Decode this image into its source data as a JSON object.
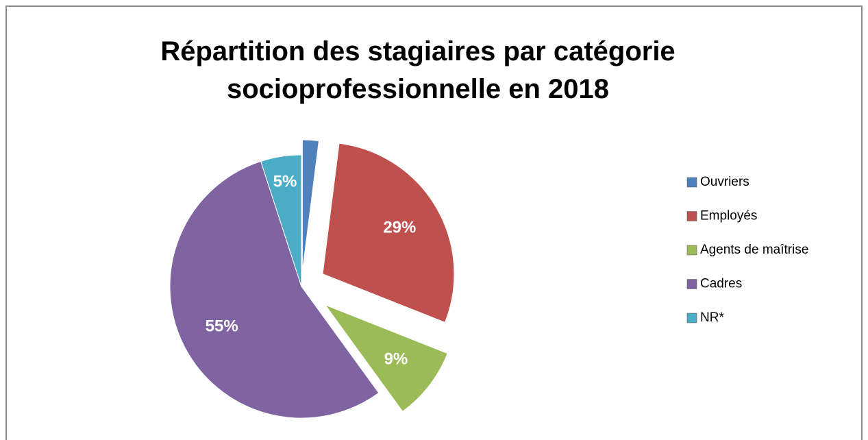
{
  "chart_data": {
    "type": "pie",
    "title": [
      "Répartition des stagiaires par catégorie",
      "socioprofessionnelle en 2018"
    ],
    "categories": [
      "Ouvriers",
      "Employés",
      "Agents de maîtrise",
      "Cadres",
      "NR*"
    ],
    "values": [
      2,
      29,
      9,
      55,
      5
    ],
    "value_labels": [
      null,
      "29%",
      "9%",
      "55%",
      "5%"
    ],
    "colors": [
      "#4f81bd",
      "#c0504d",
      "#9bbb59",
      "#8064a2",
      "#4bacc6"
    ],
    "legend": "right"
  }
}
